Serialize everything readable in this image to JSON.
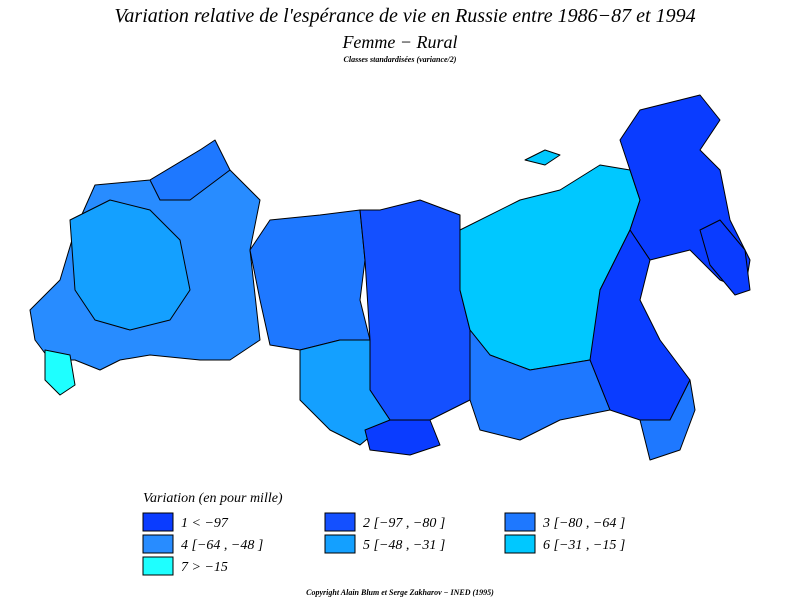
{
  "title": "Variation relative de l'espérance de vie en Russie entre 1986−87 et 1994",
  "subtitle": "Femme − Rural",
  "note": "Classes standardisées (variance/2)",
  "legend": {
    "title": "Variation (en pour mille)",
    "items": [
      {
        "label": "1  <  −97",
        "color": "#0a3cff"
      },
      {
        "label": "2 [−97 , −80 ]",
        "color": "#1450ff"
      },
      {
        "label": "3 [−80 , −64 ]",
        "color": "#1e78ff"
      },
      {
        "label": "4 [−64 , −48 ]",
        "color": "#288cff"
      },
      {
        "label": "5 [−48 , −31 ]",
        "color": "#14a0ff"
      },
      {
        "label": "6 [−31 , −15 ]",
        "color": "#00c8ff"
      },
      {
        "label": "7  >  −15",
        "color": "#1effff"
      }
    ]
  },
  "copyright": "Copyright Alain Blum et Serge Zakharov − INED (1995)"
}
